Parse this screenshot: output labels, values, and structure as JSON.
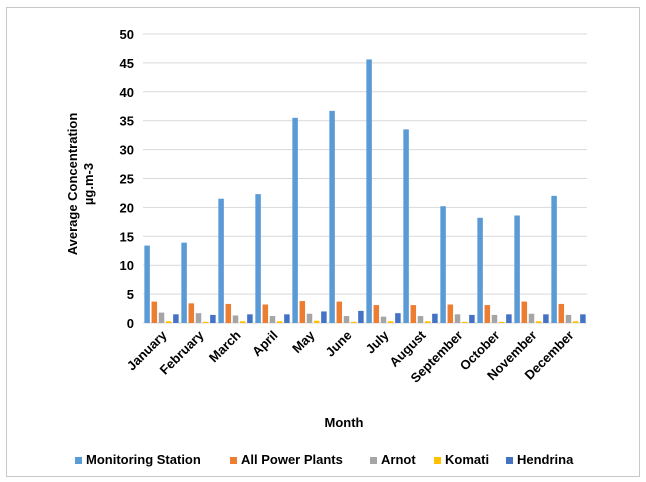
{
  "chart_data": {
    "type": "bar",
    "title": "",
    "xlabel": "Month",
    "ylabel": "Average Concentration µg.m-3",
    "ylabel_lines": [
      "Average Concentration",
      "µg.m-3"
    ],
    "ylim": [
      0,
      50
    ],
    "yticks": [
      0,
      5,
      10,
      15,
      20,
      25,
      30,
      35,
      40,
      45,
      50
    ],
    "grid": true,
    "legend_position": "bottom",
    "categories": [
      "January",
      "February",
      "March",
      "April",
      "May",
      "June",
      "July",
      "August",
      "September",
      "October",
      "November",
      "December"
    ],
    "series": [
      {
        "name": "Monitoring Station",
        "color": "#5b9bd5",
        "values": [
          13.4,
          13.9,
          21.5,
          22.3,
          35.5,
          36.7,
          45.6,
          33.5,
          20.2,
          18.2,
          18.6,
          22.0
        ]
      },
      {
        "name": "All Power Plants",
        "color": "#ed7d31",
        "values": [
          3.7,
          3.4,
          3.3,
          3.2,
          3.8,
          3.7,
          3.1,
          3.1,
          3.2,
          3.1,
          3.7,
          3.3
        ]
      },
      {
        "name": "Arnot",
        "color": "#a5a5a5",
        "values": [
          1.8,
          1.7,
          1.3,
          1.2,
          1.6,
          1.2,
          1.1,
          1.2,
          1.5,
          1.4,
          1.6,
          1.4
        ]
      },
      {
        "name": "Komati",
        "color": "#ffc000",
        "values": [
          0.3,
          0.2,
          0.3,
          0.3,
          0.4,
          0.2,
          0.3,
          0.3,
          0.2,
          0.2,
          0.3,
          0.3
        ]
      },
      {
        "name": "Hendrina",
        "color": "#4472c4",
        "values": [
          1.5,
          1.4,
          1.5,
          1.5,
          2.0,
          2.1,
          1.7,
          1.6,
          1.4,
          1.5,
          1.5,
          1.5
        ]
      }
    ]
  }
}
